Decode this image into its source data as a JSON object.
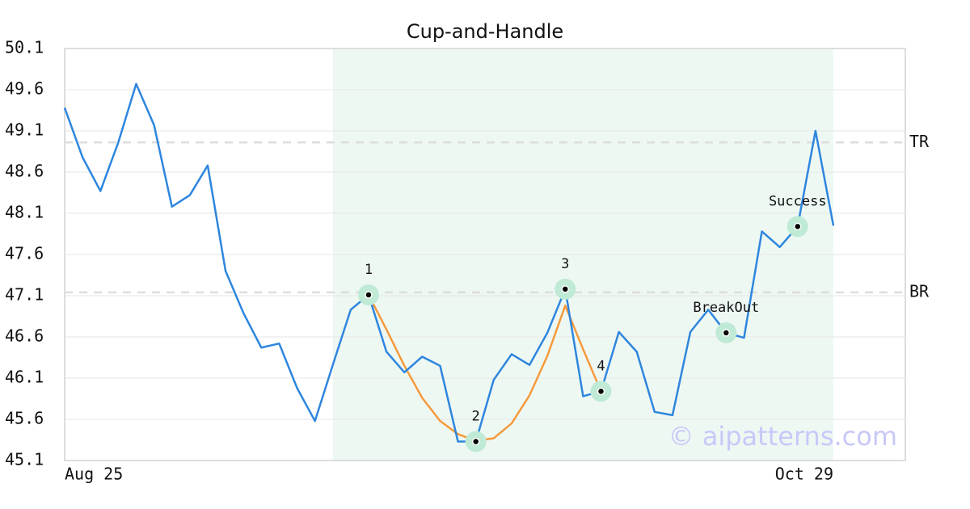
{
  "chart_data": {
    "type": "line",
    "title": "Cup-and-Handle",
    "watermark": "© aipatterns.com",
    "categories": [
      "Aug 25",
      null,
      null,
      null,
      null,
      null,
      null,
      null,
      null,
      null,
      null,
      null,
      null,
      null,
      null,
      null,
      null,
      null,
      null,
      null,
      null,
      null,
      null,
      null,
      null,
      null,
      null,
      null,
      null,
      null,
      null,
      null,
      null,
      null,
      null,
      null,
      null,
      null,
      null,
      null,
      null,
      null,
      null,
      "Oct 29"
    ],
    "series": [
      {
        "color": "#2e86de",
        "values": [
          49.38,
          48.78,
          48.37,
          48.96,
          49.67,
          49.17,
          48.18,
          48.32,
          48.68,
          47.4,
          46.89,
          46.47,
          46.52,
          45.98,
          45.58,
          46.26,
          46.93,
          47.11,
          46.42,
          46.17,
          46.36,
          46.25,
          45.33,
          45.33,
          46.08,
          46.39,
          46.26,
          46.65,
          47.18,
          45.88,
          45.94,
          46.66,
          46.42,
          45.69,
          45.65,
          46.66,
          46.93,
          46.65,
          46.59,
          47.88,
          47.69,
          47.94,
          49.1,
          47.95
        ]
      },
      {
        "color": "#f59a3c",
        "values": [
          null,
          null,
          null,
          null,
          null,
          null,
          null,
          null,
          null,
          null,
          null,
          null,
          null,
          null,
          null,
          null,
          null,
          47.11,
          46.69,
          46.25,
          45.86,
          45.58,
          45.42,
          45.34,
          45.37,
          45.55,
          45.89,
          46.37,
          46.98,
          46.45,
          45.94,
          null,
          null,
          null,
          null,
          null,
          null,
          null,
          null,
          null,
          null,
          null,
          null,
          null
        ]
      }
    ],
    "markers": {
      "indices": [
        17,
        23,
        28,
        30,
        37,
        41
      ],
      "labels": [
        "1",
        "2",
        "3",
        "4",
        "BreakOut",
        "Success"
      ],
      "color": "#bfead6"
    },
    "levels": [
      {
        "label": "TR",
        "value": 48.96
      },
      {
        "label": "BR",
        "value": 47.14
      }
    ],
    "highlight": {
      "range": [
        15,
        43
      ],
      "color": "#eef8f3"
    },
    "ylim": [
      45.1,
      50.1
    ],
    "yticks": [
      45.1,
      45.6,
      46.1,
      46.6,
      47.1,
      47.6,
      48.1,
      48.6,
      49.1,
      49.6,
      50.1
    ],
    "grid": true
  }
}
